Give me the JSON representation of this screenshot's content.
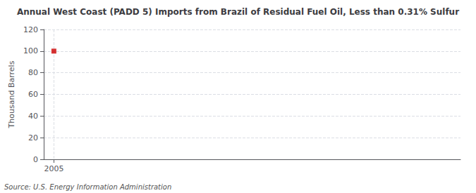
{
  "chart_data": {
    "type": "scatter",
    "title": "Annual West Coast (PADD 5) Imports from Brazil of Residual Fuel Oil, Less than 0.31% Sulfur",
    "ylabel": "Thousand Barrels",
    "annotations": [
      "Source: U.S. Energy Information Administration"
    ],
    "x": [
      2005
    ],
    "values": [
      100
    ],
    "color": "#cc0000",
    "marker": "square",
    "xlim": [
      2004.5,
      2025
    ],
    "xticks": [
      2005
    ],
    "ylim": [
      0,
      120
    ],
    "yticks": [
      0,
      20,
      40,
      60,
      80,
      100,
      120
    ],
    "grid": true
  }
}
